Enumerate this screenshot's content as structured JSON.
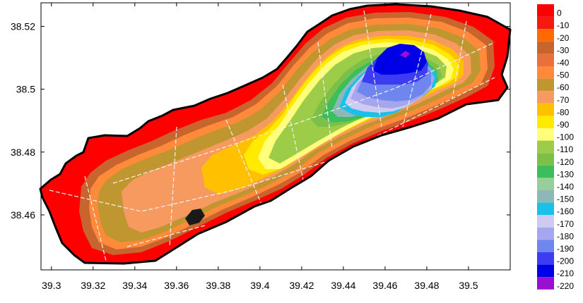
{
  "map": {
    "x_axis": {
      "range": [
        39.295,
        39.52
      ],
      "ticks": [
        {
          "value": 39.3,
          "label": "39.3"
        },
        {
          "value": 39.32,
          "label": "39.32"
        },
        {
          "value": 39.34,
          "label": "39.34"
        },
        {
          "value": 39.36,
          "label": "39.36"
        },
        {
          "value": 39.38,
          "label": "39.38"
        },
        {
          "value": 39.4,
          "label": "39.4"
        },
        {
          "value": 39.42,
          "label": "39.42"
        },
        {
          "value": 39.44,
          "label": "39.44"
        },
        {
          "value": 39.46,
          "label": "39.46"
        },
        {
          "value": 39.48,
          "label": "39.48"
        },
        {
          "value": 39.5,
          "label": "39.5"
        }
      ]
    },
    "y_axis": {
      "range": [
        38.4425,
        38.5275
      ],
      "ticks": [
        {
          "value": 38.46,
          "label": "38.46"
        },
        {
          "value": 38.48,
          "label": "38.48"
        },
        {
          "value": 38.5,
          "label": "38.5"
        },
        {
          "value": 38.52,
          "label": "38.52"
        }
      ]
    },
    "axis_color": "#000000",
    "outline_color": "#000000",
    "track_color": "#f2f2f2",
    "legend": [
      {
        "label": "0",
        "color": "#ff0000"
      },
      {
        "label": "-10",
        "color": "#f51a10"
      },
      {
        "label": "-20",
        "color": "#ff6a00"
      },
      {
        "label": "-30",
        "color": "#c8642d"
      },
      {
        "label": "-40",
        "color": "#e8703a"
      },
      {
        "label": "-50",
        "color": "#ff8a3a"
      },
      {
        "label": "-60",
        "color": "#c09630"
      },
      {
        "label": "-70",
        "color": "#f79a60"
      },
      {
        "label": "-80",
        "color": "#ffc000"
      },
      {
        "label": "-90",
        "color": "#ffea00"
      },
      {
        "label": "-100",
        "color": "#ffff7a"
      },
      {
        "label": "-110",
        "color": "#9dcc48"
      },
      {
        "label": "-120",
        "color": "#7cc04a"
      },
      {
        "label": "-130",
        "color": "#3dbe5c"
      },
      {
        "label": "-140",
        "color": "#96cf9a"
      },
      {
        "label": "-150",
        "color": "#8cb8b8"
      },
      {
        "label": "-160",
        "color": "#19c0ea"
      },
      {
        "label": "-170",
        "color": "#cfcaf2"
      },
      {
        "label": "-180",
        "color": "#a6a6ee"
      },
      {
        "label": "-190",
        "color": "#6f86ee"
      },
      {
        "label": "-200",
        "color": "#3c3cf2"
      },
      {
        "label": "-210",
        "color": "#0000e6"
      },
      {
        "label": "-220",
        "color": "#9a10d0"
      }
    ]
  }
}
